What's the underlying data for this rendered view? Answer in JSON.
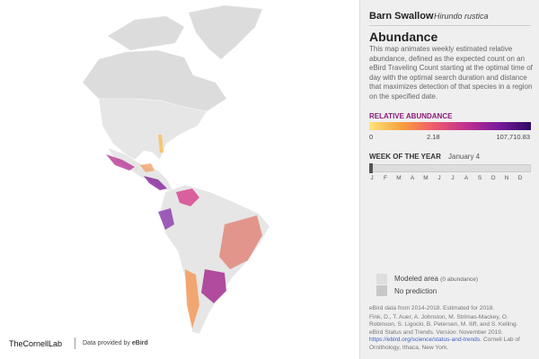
{
  "header": {
    "common_name": "Barn Swallow",
    "scientific_name": "Hirundo rustica"
  },
  "section": {
    "title": "Abundance",
    "description": "This map animates weekly estimated relative abundance, defined as the expected count on an eBird Traveling Count starting at the optimal time of day with the optimal search duration and distance that maximizes detection of that species in a region on the specified date."
  },
  "legend": {
    "title": "RELATIVE ABUNDANCE",
    "labels": [
      "0",
      "2.18",
      "107,710.83"
    ]
  },
  "week": {
    "title": "WEEK OF THE YEAR",
    "date": "January 4",
    "months": [
      "J",
      "F",
      "M",
      "A",
      "M",
      "J",
      "J",
      "A",
      "S",
      "O",
      "N",
      "D"
    ]
  },
  "key": {
    "items": [
      {
        "label": "Modeled area",
        "note": "(0 abundance)"
      },
      {
        "label": "No prediction"
      }
    ]
  },
  "credits": {
    "data_note": "eBird data from 2014-2018. Estimated for 2018.",
    "citation": "Fink, D., T. Auer, A. Johnston, M. Strimas-Mackey, O. Robinson, S. Ligocki, B. Petersen, M. Iliff, and S. Kelling. eBird Status and Trends. Version: November 2019.",
    "url": "https://ebird.org/science/status-and-trends",
    "citation_end": ". Cornell Lab of Ornithology, Ithaca, New York."
  },
  "footer": {
    "logo": "TheCornellLab",
    "provider": "Data provided by",
    "provider_name": "eBird"
  }
}
